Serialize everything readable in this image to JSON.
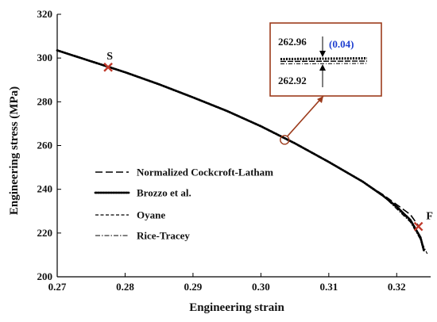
{
  "chart_data": {
    "type": "line",
    "xlabel": "Engineering strain",
    "ylabel": "Engineering stress (MPa)",
    "xlim": [
      0.27,
      0.325
    ],
    "ylim": [
      200,
      320
    ],
    "x_ticks": [
      0.27,
      0.28,
      0.29,
      0.3,
      0.31,
      0.32
    ],
    "x_tick_labels": [
      "0.27",
      "0.28",
      "0.29",
      "0.30",
      "0.31",
      "0.32"
    ],
    "y_ticks": [
      200,
      220,
      240,
      260,
      280,
      300,
      320
    ],
    "y_tick_labels": [
      "200",
      "220",
      "240",
      "260",
      "280",
      "300",
      "320"
    ],
    "grid": false,
    "legend_position": "lower-left",
    "series": [
      {
        "name": "Normalized Cockcroft-Latham",
        "style": "long-dash",
        "color": "#000000",
        "x": [
          0.27,
          0.275,
          0.28,
          0.285,
          0.29,
          0.295,
          0.3,
          0.305,
          0.31,
          0.315,
          0.318,
          0.32,
          0.322,
          0.3235
        ],
        "y": [
          303.5,
          298.5,
          293.5,
          288.0,
          282.0,
          275.8,
          268.8,
          261.0,
          252.5,
          243.5,
          237.5,
          233.0,
          228.5,
          222.0
        ]
      },
      {
        "name": "Brozzo et al.",
        "style": "dotted-bold",
        "color": "#000000",
        "x": [
          0.27,
          0.275,
          0.28,
          0.285,
          0.29,
          0.295,
          0.3,
          0.305,
          0.31,
          0.315,
          0.318,
          0.32,
          0.322,
          0.3235,
          0.324
        ],
        "y": [
          303.5,
          298.5,
          293.5,
          288.0,
          282.0,
          275.8,
          268.8,
          261.0,
          252.5,
          243.5,
          237.0,
          232.0,
          226.0,
          218.0,
          212.0
        ]
      },
      {
        "name": "Oyane",
        "style": "short-dash",
        "color": "#000000",
        "x": [
          0.27,
          0.275,
          0.28,
          0.285,
          0.29,
          0.295,
          0.3,
          0.305,
          0.31,
          0.315,
          0.318,
          0.32,
          0.322,
          0.3235,
          0.324
        ],
        "y": [
          303.5,
          298.5,
          293.5,
          288.0,
          282.0,
          275.8,
          268.8,
          261.0,
          252.5,
          243.5,
          237.0,
          231.5,
          225.5,
          218.0,
          213.0
        ]
      },
      {
        "name": "Rice-Tracey",
        "style": "dash-dot",
        "color": "#000000",
        "x": [
          0.27,
          0.275,
          0.28,
          0.285,
          0.29,
          0.295,
          0.3,
          0.305,
          0.31,
          0.315,
          0.318,
          0.32,
          0.322,
          0.3235,
          0.3245
        ],
        "y": [
          303.5,
          298.5,
          293.5,
          288.0,
          282.0,
          275.8,
          268.8,
          261.0,
          252.5,
          243.5,
          237.0,
          231.0,
          225.0,
          217.0,
          210.5
        ]
      }
    ],
    "markers": [
      {
        "label": "S",
        "x": 0.2775,
        "y": 295.8,
        "color": "#c0392b"
      },
      {
        "label": "F",
        "x": 0.3232,
        "y": 223.0,
        "color": "#c0392b"
      }
    ],
    "zoom_point": {
      "x": 0.3035,
      "y": 262.6
    },
    "inset": {
      "upper_value": "262.96",
      "lower_value": "262.92",
      "difference": "(0.04)",
      "border_color": "#9c3b1c",
      "difference_color": "#1f3fd0"
    }
  }
}
